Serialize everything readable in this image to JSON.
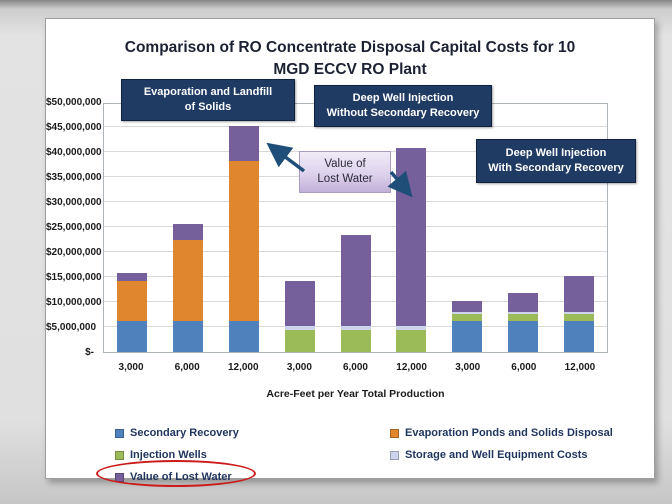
{
  "header": {
    "title_line1": "Comparison of RO Concentrate Disposal Capital Costs for 10",
    "title_line2": "MGD ECCV RO Plant"
  },
  "callouts": {
    "evaporation_landfill": "Evaporation and Landfill\nof Solids",
    "deep_well_without": "Deep Well Injection\nWithout Secondary Recovery",
    "deep_well_with": "Deep Well Injection\nWith Secondary Recovery",
    "value_of_lost_water_note": "Value of\nLost Water"
  },
  "colors": {
    "secondary_recovery": "#4f81bd",
    "injection_wells": "#9bbb59",
    "evaporation_ponds": "#e0862f",
    "storage_equipment": "#cdd3ec",
    "value_of_lost_water": "#75609b",
    "callout_box": "#1f3a63",
    "arrow": "#1f4e79",
    "red_circle": "#cc1a1a"
  },
  "chart_data": {
    "type": "bar",
    "stacked": true,
    "title": "Comparison of RO Concentrate Disposal Capital Costs for 10 MGD ECCV RO Plant",
    "xlabel": "Acre-Feet per Year Total Production",
    "ylabel": "",
    "unit": "USD",
    "ylim": [
      0,
      50000000
    ],
    "ytick_step": 5000000,
    "grid": true,
    "legend_position": "bottom",
    "y_tick_labels": [
      "$50,000,000",
      "$45,000,000",
      "$40,000,000",
      "$35,000,000",
      "$30,000,000",
      "$25,000,000",
      "$20,000,000",
      "$15,000,000",
      "$10,000,000",
      "$5,000,000",
      "$-"
    ],
    "categories": [
      "3,000",
      "6,000",
      "12,000",
      "3,000",
      "6,000",
      "12,000",
      "3,000",
      "6,000",
      "12,000"
    ],
    "groups": [
      {
        "label": "Evaporation and Landfill of Solids",
        "category_indices": [
          0,
          1,
          2
        ]
      },
      {
        "label": "Deep Well Injection Without Secondary Recovery",
        "category_indices": [
          3,
          4,
          5
        ]
      },
      {
        "label": "Deep Well Injection With Secondary Recovery",
        "category_indices": [
          6,
          7,
          8
        ]
      }
    ],
    "series": [
      {
        "name": "Secondary Recovery",
        "color": "#4f81bd",
        "values_million_usd": [
          6.3,
          6.3,
          6.3,
          0,
          0,
          0,
          6.3,
          6.3,
          6.3
        ]
      },
      {
        "name": "Injection Wells",
        "color": "#9bbb59",
        "values_million_usd": [
          0,
          0,
          0,
          4.4,
          4.4,
          4.4,
          1.3,
          1.3,
          1.3
        ]
      },
      {
        "name": "Evaporation Ponds and Solids Disposal",
        "color": "#e0862f",
        "values_million_usd": [
          7.9,
          16.1,
          32.0,
          0,
          0,
          0,
          0,
          0,
          0
        ]
      },
      {
        "name": "Storage and Well Equipment Costs",
        "color": "#cdd3ec",
        "values_million_usd": [
          0,
          0,
          0,
          0.8,
          0.8,
          0.8,
          0.4,
          0.4,
          0.4
        ]
      },
      {
        "name": "Value of Lost Water",
        "color": "#75609b",
        "values_million_usd": [
          1.7,
          3.3,
          6.9,
          9.1,
          18.2,
          35.7,
          2.3,
          3.9,
          7.3
        ]
      }
    ],
    "totals_million_usd": [
      15.9,
      25.7,
      45.2,
      14.3,
      23.4,
      40.9,
      10.3,
      11.9,
      15.3
    ]
  }
}
